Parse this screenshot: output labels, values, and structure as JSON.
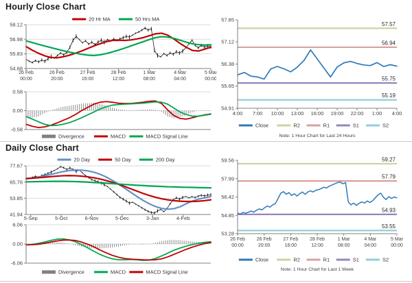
{
  "titles": {
    "hourly": "Hourly Close Chart",
    "daily": "Daily Close Chart"
  },
  "colors": {
    "grid": "#d9d9d9",
    "axis": "#7f7f7f",
    "tick_text": "#404040",
    "ref_text": "#262626",
    "hist": "#808080",
    "close_blue": "#2e79b8",
    "red": "#c00000",
    "green": "#00a651",
    "ma_blue": "#6390c6",
    "r2": "#c6d69f",
    "r1": "#d9a09b",
    "s1": "#9585be",
    "s2": "#92cddc"
  },
  "chart_data": [
    {
      "id": "hourly_price",
      "type": "line",
      "title": "Hourly Close Chart",
      "ylim": [
        54.68,
        58.12
      ],
      "yticks": [
        "58.12",
        "56.98",
        "55.83",
        "54.68"
      ],
      "xticks": [
        [
          "26 Feb",
          "00:00"
        ],
        [
          "26 Feb",
          "20:00"
        ],
        [
          "27 Feb",
          "16:00"
        ],
        [
          "28 Feb",
          "12:00"
        ],
        [
          "1 Mar",
          "08:00"
        ],
        [
          "4 Mar",
          "04:00"
        ],
        [
          "5 Mar",
          "00:00"
        ]
      ],
      "grid": true,
      "legend": [
        {
          "name": "20 Hr MA",
          "color": "#c00000",
          "style": "line"
        },
        {
          "name": "50 Hrs MA",
          "color": "#00a651",
          "style": "line"
        }
      ],
      "series": [
        {
          "name": "Close",
          "color": "#1a1a1a",
          "style": "ohlc",
          "amp": 0.13,
          "values": [
            55.4,
            55.25,
            55.15,
            55.3,
            55.2,
            55.35,
            55.25,
            55.45,
            55.6,
            55.5,
            55.7,
            55.9,
            55.75,
            55.95,
            56.35,
            56.9,
            57.2,
            56.95,
            56.7,
            56.85,
            56.6,
            56.75,
            56.55,
            56.75,
            56.9,
            56.75,
            56.95,
            56.85,
            57.0,
            56.9,
            57.0,
            57.1,
            57.2,
            57.15,
            57.3,
            57.45,
            57.55,
            57.7,
            57.85,
            57.7,
            57.8,
            56.1,
            55.7,
            55.6,
            55.85,
            55.7,
            55.9,
            55.8,
            56.0,
            55.9,
            56.05,
            56.3,
            56.6,
            56.9,
            56.5,
            56.3,
            56.5,
            56.35,
            56.45,
            56.4
          ]
        },
        {
          "name": "20 Hr MA",
          "color": "#c00000",
          "style": "line",
          "width": 2.2,
          "values": [
            56.4,
            56.12,
            55.88,
            55.68,
            55.55,
            55.52,
            55.6,
            55.72,
            55.88,
            56.05,
            56.25,
            56.45,
            56.62,
            56.78,
            56.88,
            56.9,
            56.88,
            56.92,
            57.0,
            57.1,
            57.25,
            57.4,
            57.45,
            57.3,
            57.0,
            56.65,
            56.35,
            56.1,
            56.05,
            56.2,
            56.35
          ]
        },
        {
          "name": "50 Hrs MA",
          "color": "#00a651",
          "style": "line",
          "width": 2.2,
          "values": [
            56.85,
            56.72,
            56.58,
            56.45,
            56.32,
            56.2,
            56.08,
            55.97,
            55.88,
            55.8,
            55.73,
            55.7,
            55.75,
            55.85,
            55.98,
            56.12,
            56.28,
            56.45,
            56.62,
            56.78,
            56.95,
            57.1,
            57.18,
            57.15,
            57.05,
            56.9,
            56.75,
            56.62,
            56.55,
            56.52,
            56.55
          ]
        }
      ]
    },
    {
      "id": "hourly_macd",
      "type": "line",
      "ylim": [
        -0.58,
        0.58
      ],
      "yticks": [
        "0.58",
        "0.00",
        "-0.58"
      ],
      "xticks": [],
      "grid": true,
      "legend": [
        {
          "name": "Divergence",
          "color": "#808080",
          "style": "hist"
        },
        {
          "name": "MACD",
          "color": "#c00000",
          "style": "line"
        },
        {
          "name": "MACD Signal Line",
          "color": "#00a651",
          "style": "line"
        }
      ],
      "series": [
        {
          "name": "Divergence",
          "color": "#808080",
          "style": "hist",
          "values": [
            -0.24,
            -0.22,
            -0.18,
            -0.08,
            0.01,
            0.07,
            0.12,
            0.15,
            0.18,
            0.22,
            0.23,
            0.24,
            0.21,
            0.16,
            0.09,
            0.04,
            0.02,
            0.01,
            0.02,
            0.03,
            0.04,
            0.03,
            -0.04,
            -0.18,
            -0.23,
            -0.2,
            -0.14,
            -0.05,
            0.0,
            0.01,
            0.01
          ]
        },
        {
          "name": "MACD",
          "color": "#c00000",
          "style": "line",
          "width": 1.8,
          "values": [
            -0.42,
            -0.48,
            -0.52,
            -0.5,
            -0.45,
            -0.38,
            -0.3,
            -0.22,
            -0.12,
            0.0,
            0.1,
            0.2,
            0.26,
            0.28,
            0.26,
            0.23,
            0.22,
            0.22,
            0.24,
            0.26,
            0.29,
            0.3,
            0.22,
            0.02,
            -0.15,
            -0.24,
            -0.26,
            -0.22,
            -0.17,
            -0.13,
            -0.1
          ]
        },
        {
          "name": "MACD Signal Line",
          "color": "#00a651",
          "style": "line",
          "width": 1.8,
          "values": [
            -0.18,
            -0.26,
            -0.34,
            -0.42,
            -0.46,
            -0.45,
            -0.42,
            -0.37,
            -0.3,
            -0.22,
            -0.13,
            -0.04,
            0.05,
            0.12,
            0.17,
            0.19,
            0.2,
            0.21,
            0.22,
            0.23,
            0.25,
            0.27,
            0.26,
            0.2,
            0.08,
            -0.04,
            -0.12,
            -0.17,
            -0.17,
            -0.14,
            -0.11
          ]
        }
      ]
    },
    {
      "id": "hourly_pivot",
      "type": "line",
      "ylim": [
        54.91,
        57.85
      ],
      "yticks": [
        "57.85",
        "57.12",
        "56.38",
        "55.65",
        "54.91"
      ],
      "xticks": [
        "4:00",
        "7:00",
        "10:00",
        "13:00",
        "16:00",
        "19:00",
        "22:00",
        "1:00",
        "4:00"
      ],
      "grid": false,
      "ref_lines": [
        {
          "name": "R2",
          "label": "57.57",
          "value": 57.57,
          "color": "#c6d69f"
        },
        {
          "name": "R1",
          "label": "56.94",
          "value": 56.94,
          "color": "#d9a09b"
        },
        {
          "name": "S1",
          "label": "55.75",
          "value": 55.75,
          "color": "#9585be"
        },
        {
          "name": "S2",
          "label": "55.19",
          "value": 55.19,
          "color": "#92cddc"
        }
      ],
      "legend": [
        {
          "name": "Close",
          "color": "#2e79b8",
          "style": "line"
        },
        {
          "name": "R2",
          "color": "#c6d69f",
          "style": "line"
        },
        {
          "name": "R1",
          "color": "#d9a09b",
          "style": "line"
        },
        {
          "name": "S1",
          "color": "#9585be",
          "style": "line"
        },
        {
          "name": "S2",
          "color": "#92cddc",
          "style": "line"
        }
      ],
      "note": "Note: 1 Hour Chart for Last 24 Hours",
      "series": [
        {
          "name": "Close",
          "color": "#2e79b8",
          "style": "line",
          "width": 1.7,
          "values": [
            56.02,
            56.1,
            55.98,
            55.95,
            55.88,
            56.22,
            56.3,
            56.22,
            56.12,
            56.28,
            56.5,
            56.85,
            56.55,
            56.25,
            55.95,
            56.28,
            56.42,
            56.47,
            56.4,
            56.35,
            56.33,
            56.43,
            56.3,
            56.36,
            56.31
          ]
        }
      ]
    },
    {
      "id": "daily_price",
      "type": "line",
      "title": "Daily Close Chart",
      "ylim": [
        41.94,
        77.67
      ],
      "yticks": [
        "77.67",
        "65.76",
        "53.85",
        "41.94"
      ],
      "xticks": [
        "5-Sep",
        "5-Oct",
        "6-Nov",
        "5-Dec",
        "3-Jan",
        "4-Feb"
      ],
      "xtick_pos": [
        0.025,
        0.19,
        0.355,
        0.52,
        0.685,
        0.85
      ],
      "grid": true,
      "legend": [
        {
          "name": "20 Day",
          "color": "#6390c6",
          "style": "line"
        },
        {
          "name": "50 Day",
          "color": "#c00000",
          "style": "line"
        },
        {
          "name": "200 Day",
          "color": "#00a651",
          "style": "line"
        }
      ],
      "series": [
        {
          "name": "Close",
          "color": "#1a1a1a",
          "style": "ohlc",
          "amp": 0.95,
          "values": [
            68.2,
            68.5,
            69.2,
            70.0,
            69.5,
            70.5,
            71.2,
            72.0,
            73.0,
            74.2,
            75.5,
            77.0,
            76.3,
            75.0,
            76.2,
            74.8,
            73.5,
            74.5,
            72.5,
            70.5,
            69.0,
            67.5,
            66.8,
            66.0,
            65.0,
            63.8,
            62.5,
            60.5,
            58.5,
            56.5,
            54.5,
            53.2,
            51.8,
            50.3,
            51.0,
            49.6,
            48.2,
            46.8,
            45.4,
            44.2,
            43.4,
            43.0,
            44.6,
            45.6,
            44.0,
            46.2,
            49.8,
            52.6,
            54.2,
            53.2,
            54.4,
            55.2,
            54.2,
            55.0,
            54.4,
            55.4,
            56.0,
            55.6,
            56.2,
            56.4
          ]
        },
        {
          "name": "20 Day",
          "color": "#6390c6",
          "style": "line",
          "width": 2.2,
          "values": [
            68.0,
            68.6,
            69.4,
            70.3,
            71.3,
            72.4,
            73.4,
            74.2,
            74.6,
            74.5,
            74.0,
            73.0,
            71.5,
            69.5,
            67.0,
            64.3,
            61.3,
            58.2,
            55.2,
            52.3,
            49.8,
            47.8,
            46.4,
            45.8,
            46.2,
            47.6,
            49.8,
            51.8,
            53.2,
            54.2,
            55.2
          ]
        },
        {
          "name": "50 Day",
          "color": "#c00000",
          "style": "line",
          "width": 2.2,
          "values": [
            68.4,
            68.6,
            68.9,
            69.3,
            69.7,
            70.1,
            70.4,
            70.5,
            70.4,
            70.1,
            69.6,
            68.9,
            68.0,
            66.9,
            65.6,
            64.1,
            62.5,
            60.8,
            59.1,
            57.4,
            55.9,
            54.6,
            53.5,
            52.7,
            52.1,
            51.7,
            51.5,
            51.5,
            51.7,
            52.1,
            52.7
          ]
        },
        {
          "name": "200 Day",
          "color": "#00a651",
          "style": "line",
          "width": 2.2,
          "values": [
            65.9,
            66.0,
            66.1,
            66.2,
            66.3,
            66.3,
            66.3,
            66.2,
            66.1,
            65.9,
            65.7,
            65.4,
            65.2,
            64.9,
            64.6,
            64.3,
            64.0,
            63.7,
            63.4,
            63.2,
            62.9,
            62.7,
            62.5,
            62.3,
            62.2,
            62.0,
            61.9,
            61.8,
            61.7,
            61.6,
            61.5
          ]
        }
      ]
    },
    {
      "id": "daily_macd",
      "type": "line",
      "ylim": [
        -6.06,
        6.06
      ],
      "yticks": [
        "6.06",
        "0.00",
        "-6.06"
      ],
      "xticks": [],
      "grid": true,
      "legend": [
        {
          "name": "Divergence",
          "color": "#808080",
          "style": "hist"
        },
        {
          "name": "MACD",
          "color": "#00a651",
          "style": "line"
        },
        {
          "name": "MACD Signal Line",
          "color": "#c00000",
          "style": "line"
        }
      ],
      "series": [
        {
          "name": "Divergence",
          "color": "#808080",
          "style": "hist",
          "values": [
            0.0,
            0.1,
            0.3,
            0.4,
            0.5,
            0.55,
            0.4,
            0.05,
            -0.4,
            -0.8,
            -1.1,
            -1.4,
            -1.4,
            -1.3,
            -1.1,
            -0.8,
            -0.4,
            -0.1,
            -0.1,
            -0.2,
            -0.05,
            0.4,
            0.9,
            1.2,
            1.3,
            1.2,
            1.0,
            0.8,
            0.6,
            0.4,
            0.25
          ]
        },
        {
          "name": "MACD",
          "color": "#00a651",
          "style": "line",
          "width": 1.8,
          "values": [
            -0.3,
            -0.15,
            0.2,
            0.6,
            1.1,
            1.5,
            1.6,
            1.3,
            0.7,
            -0.2,
            -1.2,
            -2.3,
            -3.3,
            -4.1,
            -4.7,
            -5.0,
            -5.0,
            -4.9,
            -5.0,
            -5.2,
            -5.1,
            -4.6,
            -3.8,
            -2.9,
            -2.0,
            -1.3,
            -0.7,
            -0.2,
            0.2,
            0.5,
            0.7
          ]
        },
        {
          "name": "MACD Signal Line",
          "color": "#c00000",
          "style": "line",
          "width": 1.8,
          "values": [
            -0.3,
            -0.25,
            -0.1,
            0.2,
            0.6,
            0.95,
            1.2,
            1.25,
            1.1,
            0.6,
            -0.1,
            -0.9,
            -1.9,
            -2.8,
            -3.6,
            -4.2,
            -4.6,
            -4.8,
            -4.9,
            -5.0,
            -5.05,
            -5.0,
            -4.7,
            -4.1,
            -3.3,
            -2.5,
            -1.7,
            -1.0,
            -0.4,
            0.1,
            0.45
          ]
        }
      ]
    },
    {
      "id": "daily_pivot",
      "type": "line",
      "ylim": [
        53.28,
        59.56
      ],
      "yticks": [
        "59.56",
        "57.99",
        "56.42",
        "54.85",
        "53.28"
      ],
      "xticks": [
        [
          "26 Feb",
          "00:00"
        ],
        [
          "26 Feb",
          "20:00"
        ],
        [
          "27 Feb",
          "16:00"
        ],
        [
          "28 Feb",
          "12:00"
        ],
        [
          "1 Mar",
          "08:00"
        ],
        [
          "4 Mar",
          "04:00"
        ],
        [
          "5 Mar",
          "00:00"
        ]
      ],
      "grid": false,
      "ref_lines": [
        {
          "name": "R2",
          "label": "59.27",
          "value": 59.27,
          "color": "#c6d69f"
        },
        {
          "name": "R1",
          "label": "57.79",
          "value": 57.79,
          "color": "#d9a09b"
        },
        {
          "name": "S1",
          "label": "54.93",
          "value": 54.93,
          "color": "#9585be"
        },
        {
          "name": "S2",
          "label": "53.55",
          "value": 53.55,
          "color": "#92cddc"
        }
      ],
      "legend": [
        {
          "name": "Close",
          "color": "#2e79b8",
          "style": "line"
        },
        {
          "name": "R2",
          "color": "#c6d69f",
          "style": "line"
        },
        {
          "name": "R1",
          "color": "#d9a09b",
          "style": "line"
        },
        {
          "name": "S1",
          "color": "#9585be",
          "style": "line"
        },
        {
          "name": "S2",
          "color": "#92cddc",
          "style": "line"
        }
      ],
      "note": "Note: 1 Hour Chart for Last 1 Week",
      "series": [
        {
          "name": "Close",
          "color": "#2e79b8",
          "style": "line",
          "width": 1.5,
          "values": [
            55.05,
            54.95,
            55.1,
            55.02,
            55.12,
            55.22,
            55.12,
            55.28,
            55.4,
            55.32,
            55.5,
            55.65,
            55.55,
            55.75,
            55.85,
            56.3,
            56.75,
            56.88,
            56.65,
            56.8,
            56.55,
            56.7,
            56.5,
            56.7,
            56.85,
            56.65,
            56.85,
            56.95,
            56.85,
            57.0,
            57.05,
            57.15,
            57.25,
            57.2,
            57.35,
            57.45,
            57.55,
            57.65,
            57.7,
            57.55,
            57.65,
            56.0,
            55.75,
            55.9,
            55.7,
            55.88,
            56.0,
            55.9,
            56.08,
            55.95,
            56.1,
            56.35,
            56.6,
            56.75,
            56.4,
            56.2,
            56.45,
            56.3,
            56.42,
            56.35
          ]
        }
      ]
    }
  ]
}
